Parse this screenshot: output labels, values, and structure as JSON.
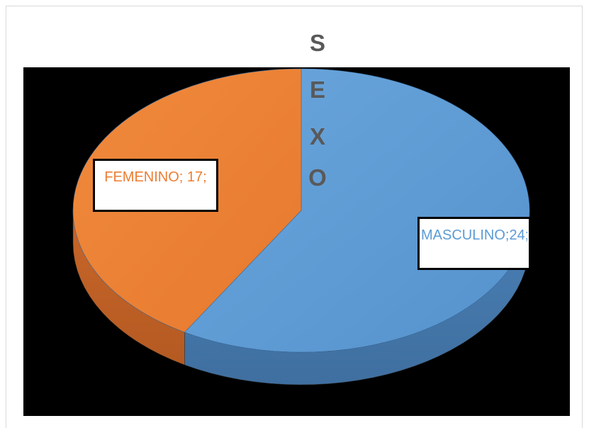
{
  "chart_data": {
    "type": "pie",
    "style": "3d",
    "title": "SEXO",
    "categories": [
      "MASCULINO",
      "FEMENINO"
    ],
    "values": [
      24,
      17
    ],
    "colors": [
      "#5b9bd5",
      "#ed7d31"
    ],
    "data_labels": [
      "MASCULINO;24;",
      "FEMENINO; 17;"
    ],
    "legend": "none"
  },
  "title_letters": [
    "S",
    "E",
    "X",
    "O"
  ],
  "labels": {
    "masculino": "MASCULINO;24;",
    "femenino": "FEMENINO; 17;"
  }
}
